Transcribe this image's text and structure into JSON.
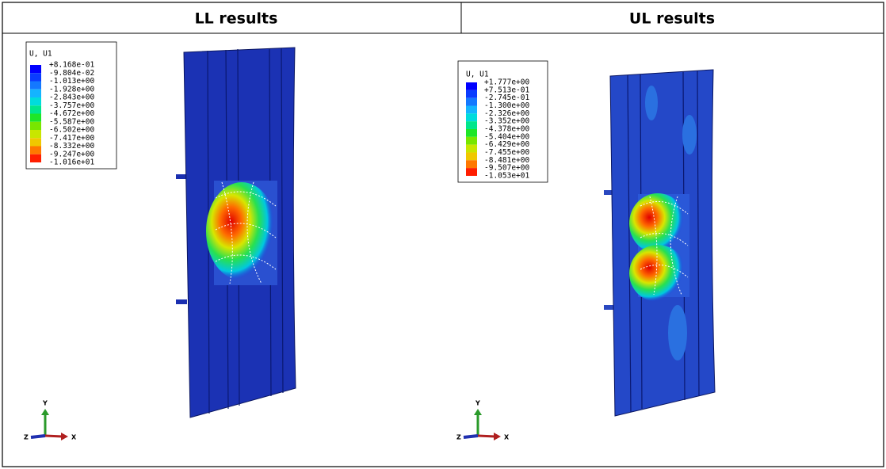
{
  "table": {
    "headers": [
      "LL results",
      "UL results"
    ],
    "cells": [
      {
        "legend": {
          "title": "U, U1",
          "values": [
            "+8.168e-01",
            "-9.804e-02",
            "-1.013e+00",
            "-1.928e+00",
            "-2.843e+00",
            "-3.757e+00",
            "-4.672e+00",
            "-5.587e+00",
            "-6.502e+00",
            "-7.417e+00",
            "-8.332e+00",
            "-9.247e+00",
            "-1.016e+01"
          ]
        },
        "triad": {
          "y": "Y",
          "z": "Z",
          "x": "X"
        }
      },
      {
        "legend": {
          "title": "U, U1",
          "values": [
            "+1.777e+00",
            "+7.513e-01",
            "-2.745e-01",
            "-1.300e+00",
            "-2.326e+00",
            "-3.352e+00",
            "-4.378e+00",
            "-5.404e+00",
            "-6.429e+00",
            "-7.455e+00",
            "-8.481e+00",
            "-9.507e+00",
            "-1.053e+01"
          ]
        },
        "triad": {
          "y": "Y",
          "z": "Z",
          "x": "X"
        }
      }
    ]
  }
}
